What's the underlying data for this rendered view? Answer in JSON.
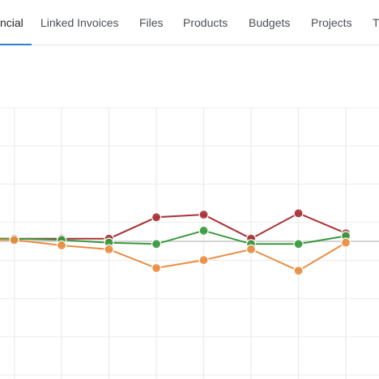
{
  "tabs": [
    {
      "label": "ncial",
      "active": true
    },
    {
      "label": "Linked Invoices",
      "active": false
    },
    {
      "label": "Files",
      "active": false
    },
    {
      "label": "Products",
      "active": false
    },
    {
      "label": "Budgets",
      "active": false
    },
    {
      "label": "Projects",
      "active": false
    },
    {
      "label": "T",
      "active": false
    }
  ],
  "colors": {
    "accent": "#2f7fd8",
    "series_red": "#a83236",
    "series_green": "#3a9a3e",
    "series_orange": "#ea8d42",
    "grid": "#ececec",
    "baseline": "#d4d4d4"
  },
  "chart_data": {
    "type": "line",
    "grid": true,
    "legend": "none",
    "title": "",
    "xlabel": "",
    "ylabel": "",
    "x": [
      0,
      1,
      2,
      3,
      4,
      5,
      6,
      7
    ],
    "xlim": [
      -0.3,
      7.7
    ],
    "ylim": [
      -10,
      10
    ],
    "baseline": 0,
    "series": [
      {
        "color": "#a83236",
        "values": [
          0.2,
          0.2,
          0.2,
          1.8,
          2.0,
          0.2,
          2.1,
          0.6
        ]
      },
      {
        "color": "#3a9a3e",
        "values": [
          0.2,
          0.1,
          -0.1,
          -0.2,
          0.8,
          -0.2,
          -0.2,
          0.4
        ]
      },
      {
        "color": "#ea8d42",
        "values": [
          0.1,
          -0.3,
          -0.6,
          -2.0,
          -1.4,
          -0.6,
          -2.2,
          -0.1
        ]
      }
    ]
  }
}
